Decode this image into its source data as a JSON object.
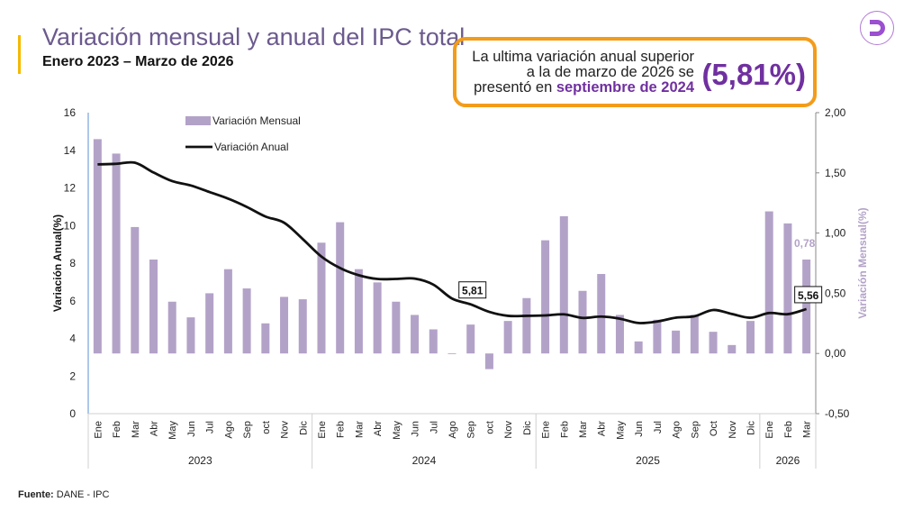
{
  "header": {
    "title": "Variación mensual y anual del IPC total",
    "subtitle": "Enero 2023 – Marzo de 2026"
  },
  "callout": {
    "line1": "La ultima variación anual superior",
    "line2": "a la de marzo de 2026 se",
    "line3_prefix": "presentó en ",
    "line3_highlight": "septiembre de 2024",
    "value": "(5,81%)"
  },
  "logo": {
    "letter": "D",
    "icon": "brand-d-logo"
  },
  "source": {
    "label": "Fuente:",
    "text": " DANE - IPC"
  },
  "colors": {
    "bars": "#b3a2c8",
    "line": "#111111",
    "title": "#6b5a8e",
    "highlight": "#7030a0",
    "callout_border": "#f39c1a"
  },
  "chart_data": {
    "type": "bar+line",
    "categories": [
      "Ene",
      "Feb",
      "Mar",
      "Abr",
      "May",
      "Jun",
      "Jul",
      "Ago",
      "Sep",
      "oct",
      "Nov",
      "Dic",
      "Ene",
      "Feb",
      "Mar",
      "Abr",
      "May",
      "Jun",
      "Jul",
      "Ago",
      "Sep",
      "oct",
      "Nov",
      "Dic",
      "Ene",
      "Feb",
      "Mar",
      "Abr",
      "May",
      "Jun",
      "Jul",
      "Ago",
      "Sep",
      "Oct",
      "Nov",
      "Dic",
      "Ene",
      "Feb",
      "Mar"
    ],
    "years": [
      {
        "label": "2023",
        "count": 12
      },
      {
        "label": "2024",
        "count": 12
      },
      {
        "label": "2025",
        "count": 12
      },
      {
        "label": "2026",
        "count": 3
      }
    ],
    "series": [
      {
        "name": "Variación Mensual",
        "type": "bar",
        "axis": "right",
        "values": [
          1.78,
          1.66,
          1.05,
          0.78,
          0.43,
          0.3,
          0.5,
          0.7,
          0.54,
          0.25,
          0.47,
          0.45,
          0.92,
          1.09,
          0.7,
          0.59,
          0.43,
          0.32,
          0.2,
          0.0,
          0.24,
          -0.13,
          0.27,
          0.46,
          0.94,
          1.14,
          0.52,
          0.66,
          0.32,
          0.1,
          0.28,
          0.19,
          0.32,
          0.18,
          0.07,
          0.27,
          1.18,
          1.08,
          0.78
        ]
      },
      {
        "name": "Variación Anual",
        "type": "line",
        "axis": "left",
        "values": [
          13.25,
          13.28,
          13.34,
          12.82,
          12.36,
          12.13,
          11.78,
          11.43,
          10.99,
          10.48,
          10.15,
          9.28,
          8.35,
          7.74,
          7.36,
          7.16,
          7.16,
          7.18,
          6.86,
          6.12,
          5.81,
          5.41,
          5.2,
          5.2,
          5.22,
          5.28,
          5.09,
          5.16,
          5.05,
          4.82,
          4.9,
          5.1,
          5.18,
          5.51,
          5.3,
          5.1,
          5.35,
          5.29,
          5.56
        ]
      }
    ],
    "annotations": [
      {
        "text": "5,81",
        "series": "Variación Anual",
        "index": 20,
        "boxed": true
      },
      {
        "text": "5,56",
        "series": "Variación Anual",
        "index": 38,
        "boxed": true
      },
      {
        "text": "0,78",
        "series": "Variación Mensual",
        "index": 38,
        "boxed": false
      }
    ],
    "ylabel": "Variación Anual(%)",
    "y2label": "Variación Mensual(%)",
    "ylim": [
      0,
      16
    ],
    "y2lim": [
      -0.5,
      2.0
    ],
    "yticks": [
      "0",
      "2",
      "4",
      "6",
      "8",
      "10",
      "12",
      "14",
      "16"
    ],
    "y2ticks": [
      "-0,50",
      "0,00",
      "0,50",
      "1,00",
      "1,50",
      "2,00"
    ],
    "legend": "top-left",
    "grid": false
  }
}
